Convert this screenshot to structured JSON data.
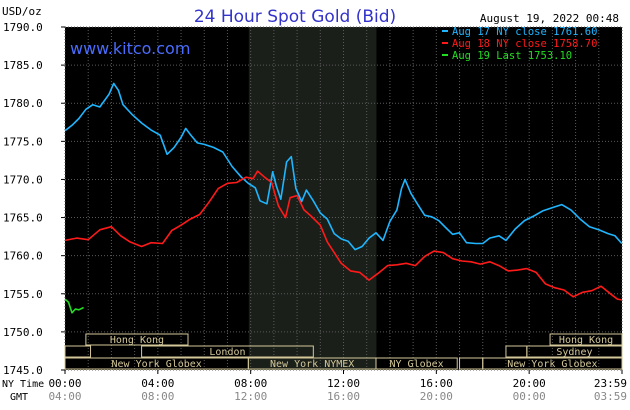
{
  "header": {
    "unit": "USD/oz",
    "title": "24 Hour Spot Gold (Bid)",
    "timestamp": "August 19, 2022 00:48",
    "watermark": "www.kitco.com"
  },
  "colors": {
    "background": "#000000",
    "plot_bg": "#000000",
    "ny_session_shade": "#1a1f1a",
    "grid": "#5a5a5a",
    "title": "#3333cc",
    "watermark": "#4a6cff",
    "aug17": "#1fb6ff",
    "aug18": "#ff1a1a",
    "aug19": "#22dd22",
    "session_box": "#d4c89a",
    "session_text": "#000000"
  },
  "chart_data": {
    "type": "line",
    "title": "24 Hour Spot Gold (Bid)",
    "ylabel": "USD/oz",
    "ylim": [
      1745,
      1790
    ],
    "y_ticks": [
      "1790.0",
      "1785.0",
      "1780.0",
      "1775.0",
      "1770.0",
      "1765.0",
      "1760.0",
      "1755.0",
      "1750.0",
      "1745.0"
    ],
    "x_hours_range": [
      0,
      24
    ],
    "x_ticks_ny": [
      "00:00",
      "04:00",
      "08:00",
      "12:00",
      "16:00",
      "20:00",
      "23:59"
    ],
    "x_ticks_gmt": [
      "04:00",
      "08:00",
      "12:00",
      "16:00",
      "20:00",
      "00:00",
      "03:59"
    ],
    "x_axis_labels": [
      "NY Time",
      "GMT"
    ],
    "grid": true,
    "legend_position": "top-right",
    "legend": [
      {
        "label": "Aug 17 NY close 1761.60",
        "color": "#1fb6ff"
      },
      {
        "label": "Aug 18 NY close 1758.70",
        "color": "#ff1a1a"
      },
      {
        "label": "Aug 19 Last 1753.10",
        "color": "#22dd22"
      }
    ],
    "ny_session_shade_hours": [
      7.92,
      13.42
    ],
    "series": [
      {
        "name": "Aug 17 NY close 1761.60",
        "color": "#1fb6ff",
        "points": [
          [
            0,
            1776.4
          ],
          [
            0.3,
            1777.1
          ],
          [
            0.6,
            1778.0
          ],
          [
            0.9,
            1779.2
          ],
          [
            1.2,
            1779.8
          ],
          [
            1.5,
            1779.5
          ],
          [
            1.9,
            1781.2
          ],
          [
            2.1,
            1782.6
          ],
          [
            2.3,
            1781.7
          ],
          [
            2.5,
            1779.8
          ],
          [
            2.9,
            1778.5
          ],
          [
            3.3,
            1777.4
          ],
          [
            3.7,
            1776.5
          ],
          [
            4.1,
            1775.8
          ],
          [
            4.4,
            1773.3
          ],
          [
            4.7,
            1774.2
          ],
          [
            5.0,
            1775.5
          ],
          [
            5.2,
            1776.7
          ],
          [
            5.4,
            1775.9
          ],
          [
            5.7,
            1774.8
          ],
          [
            6.0,
            1774.6
          ],
          [
            6.4,
            1774.2
          ],
          [
            6.8,
            1773.6
          ],
          [
            7.2,
            1771.7
          ],
          [
            7.6,
            1770.3
          ],
          [
            7.9,
            1769.5
          ],
          [
            8.2,
            1768.9
          ],
          [
            8.4,
            1767.2
          ],
          [
            8.7,
            1766.8
          ],
          [
            8.95,
            1771.0
          ],
          [
            9.1,
            1769.2
          ],
          [
            9.3,
            1767.4
          ],
          [
            9.55,
            1772.3
          ],
          [
            9.75,
            1773.0
          ],
          [
            9.95,
            1768.8
          ],
          [
            10.2,
            1767.1
          ],
          [
            10.4,
            1768.6
          ],
          [
            10.7,
            1767.2
          ],
          [
            11.0,
            1765.6
          ],
          [
            11.3,
            1764.8
          ],
          [
            11.6,
            1762.9
          ],
          [
            11.9,
            1762.2
          ],
          [
            12.2,
            1761.9
          ],
          [
            12.5,
            1760.8
          ],
          [
            12.8,
            1761.2
          ],
          [
            13.1,
            1762.3
          ],
          [
            13.4,
            1763.0
          ],
          [
            13.7,
            1762.0
          ],
          [
            14.0,
            1764.5
          ],
          [
            14.3,
            1766.0
          ],
          [
            14.5,
            1768.8
          ],
          [
            14.65,
            1770.0
          ],
          [
            14.9,
            1768.2
          ],
          [
            15.2,
            1766.7
          ],
          [
            15.5,
            1765.3
          ],
          [
            15.8,
            1765.1
          ],
          [
            16.1,
            1764.6
          ],
          [
            16.4,
            1763.7
          ],
          [
            16.7,
            1762.8
          ],
          [
            17.0,
            1763.0
          ],
          [
            17.3,
            1761.7
          ],
          [
            17.7,
            1761.6
          ],
          [
            18.0,
            1761.6
          ],
          [
            18.3,
            1762.3
          ],
          [
            18.7,
            1762.6
          ],
          [
            19.0,
            1762.0
          ],
          [
            19.4,
            1763.5
          ],
          [
            19.8,
            1764.6
          ],
          [
            20.2,
            1765.2
          ],
          [
            20.6,
            1765.9
          ],
          [
            21.0,
            1766.3
          ],
          [
            21.4,
            1766.7
          ],
          [
            21.8,
            1766.0
          ],
          [
            22.2,
            1764.8
          ],
          [
            22.6,
            1763.8
          ],
          [
            23.0,
            1763.4
          ],
          [
            23.4,
            1762.9
          ],
          [
            23.7,
            1762.6
          ],
          [
            23.99,
            1761.6
          ]
        ]
      },
      {
        "name": "Aug 18 NY close 1758.70",
        "color": "#ff1a1a",
        "points": [
          [
            0,
            1762.0
          ],
          [
            0.5,
            1762.3
          ],
          [
            1.0,
            1762.1
          ],
          [
            1.5,
            1763.4
          ],
          [
            2.0,
            1763.8
          ],
          [
            2.4,
            1762.6
          ],
          [
            2.8,
            1761.8
          ],
          [
            3.3,
            1761.2
          ],
          [
            3.7,
            1761.7
          ],
          [
            4.2,
            1761.6
          ],
          [
            4.6,
            1763.3
          ],
          [
            5.0,
            1764.0
          ],
          [
            5.4,
            1764.8
          ],
          [
            5.8,
            1765.4
          ],
          [
            6.2,
            1767.0
          ],
          [
            6.6,
            1768.8
          ],
          [
            7.0,
            1769.5
          ],
          [
            7.4,
            1769.6
          ],
          [
            7.8,
            1770.3
          ],
          [
            8.1,
            1770.1
          ],
          [
            8.3,
            1771.1
          ],
          [
            8.6,
            1770.3
          ],
          [
            8.9,
            1769.6
          ],
          [
            9.2,
            1766.5
          ],
          [
            9.5,
            1765.0
          ],
          [
            9.7,
            1767.6
          ],
          [
            10.0,
            1767.9
          ],
          [
            10.3,
            1766.0
          ],
          [
            10.6,
            1765.2
          ],
          [
            11.0,
            1764.0
          ],
          [
            11.3,
            1761.8
          ],
          [
            11.6,
            1760.4
          ],
          [
            11.9,
            1759.0
          ],
          [
            12.3,
            1758.0
          ],
          [
            12.7,
            1757.8
          ],
          [
            13.1,
            1756.8
          ],
          [
            13.5,
            1757.7
          ],
          [
            13.9,
            1758.7
          ],
          [
            14.3,
            1758.8
          ],
          [
            14.7,
            1759.0
          ],
          [
            15.1,
            1758.7
          ],
          [
            15.5,
            1759.9
          ],
          [
            15.9,
            1760.6
          ],
          [
            16.3,
            1760.4
          ],
          [
            16.7,
            1759.6
          ],
          [
            17.1,
            1759.3
          ],
          [
            17.5,
            1759.2
          ],
          [
            17.9,
            1758.9
          ],
          [
            18.3,
            1759.2
          ],
          [
            18.7,
            1758.7
          ],
          [
            19.1,
            1758.0
          ],
          [
            19.5,
            1758.1
          ],
          [
            19.9,
            1758.3
          ],
          [
            20.3,
            1757.8
          ],
          [
            20.7,
            1756.3
          ],
          [
            21.1,
            1755.8
          ],
          [
            21.5,
            1755.5
          ],
          [
            21.9,
            1754.6
          ],
          [
            22.3,
            1755.2
          ],
          [
            22.7,
            1755.4
          ],
          [
            23.1,
            1756.0
          ],
          [
            23.5,
            1755.0
          ],
          [
            23.8,
            1754.3
          ],
          [
            23.99,
            1754.2
          ]
        ]
      },
      {
        "name": "Aug 19 Last 1753.10",
        "color": "#22dd22",
        "points": [
          [
            0,
            1754.3
          ],
          [
            0.15,
            1753.9
          ],
          [
            0.3,
            1752.5
          ],
          [
            0.45,
            1753.0
          ],
          [
            0.6,
            1752.9
          ],
          [
            0.8,
            1753.2
          ]
        ]
      }
    ],
    "sessions": [
      {
        "label": "Hong Kong",
        "row": 0,
        "start": 0.9,
        "end": 5.3
      },
      {
        "label": "London",
        "row": 1,
        "start": 3.3,
        "end": 10.7
      },
      {
        "label": "New York Globex",
        "row": 2,
        "start": 0.0,
        "end": 7.9
      },
      {
        "label": "New York NYMEX",
        "row": 2,
        "start": 7.9,
        "end": 13.4
      },
      {
        "label": "NY Globex",
        "row": 2,
        "start": 13.4,
        "end": 16.9
      },
      {
        "label": "Hong Kong",
        "row": 0,
        "start": 20.9,
        "end": 24.0
      },
      {
        "label": "Sydney",
        "row": 1,
        "start": 19.9,
        "end": 24.0
      },
      {
        "label": "New York Globex",
        "row": 2,
        "start": 18.0,
        "end": 24.0
      },
      {
        "label": "",
        "row": 1,
        "start": 0.0,
        "end": 1.1
      },
      {
        "label": "",
        "row": 1,
        "start": 19.0,
        "end": 19.9
      },
      {
        "label": "",
        "row": 2,
        "start": 17.0,
        "end": 18.0
      }
    ]
  }
}
